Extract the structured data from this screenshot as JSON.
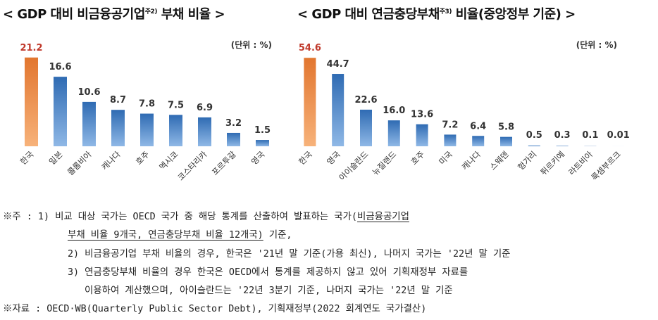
{
  "chart_data": [
    {
      "type": "bar",
      "title": "< GDP 대비 비금융공기업",
      "title_sup": "주2)",
      "title_end": " 부채 비율 >",
      "unit_label": "(단위 : %)",
      "categories": [
        "한국",
        "일본",
        "콜롬비아",
        "캐나다",
        "호주",
        "멕시코",
        "코스타리카",
        "포르투갈",
        "영국"
      ],
      "values": [
        21.2,
        16.6,
        10.6,
        8.7,
        7.8,
        7.5,
        6.9,
        3.2,
        1.5
      ],
      "value_labels": [
        "21.2",
        "16.6",
        "10.6",
        "8.7",
        "7.8",
        "7.5",
        "6.9",
        "3.2",
        "1.5"
      ],
      "ylim": [
        0,
        22
      ],
      "grid": false,
      "colors": {
        "highlight": "#e2762f",
        "highlight_light": "#f7b27a",
        "bar": "#2f6bb3",
        "bar_light": "#8fb8e6",
        "highlight_label": "#c0392b",
        "label": "#333333"
      }
    },
    {
      "type": "bar",
      "title": "< GDP 대비 연금충당부채",
      "title_sup": "주3)",
      "title_end": " 비율(중앙정부 기준) >",
      "unit_label": "(단위 : %)",
      "categories": [
        "한국",
        "영국",
        "아이슬란드",
        "뉴질랜드",
        "호주",
        "미국",
        "캐나다",
        "스웨덴",
        "헝가리",
        "튀르키예",
        "라트비아",
        "룩셈부르크"
      ],
      "values": [
        54.6,
        44.7,
        22.6,
        16.0,
        13.6,
        7.2,
        6.4,
        5.8,
        0.5,
        0.3,
        0.1,
        0.01
      ],
      "value_labels": [
        "54.6",
        "44.7",
        "22.6",
        "16.0",
        "13.6",
        "7.2",
        "6.4",
        "5.8",
        "0.5",
        "0.3",
        "0.1",
        "0.01"
      ],
      "ylim": [
        0,
        56
      ],
      "grid": false,
      "colors": {
        "highlight": "#e2762f",
        "highlight_light": "#f7b27a",
        "bar": "#2f6bb3",
        "bar_light": "#8fb8e6",
        "highlight_label": "#c0392b",
        "label": "#333333"
      }
    }
  ],
  "notes": {
    "line1_prefix": "※주 : 1) 비교 대상 국가는 OECD 국가 중 해당 통계를 산출하여 발표하는 국가(",
    "line1_underlined": "비금융공기업",
    "line2_underlined": "부채 비율 9개국, 연금충당부채 비율 12개국)",
    "line2_suffix": " 기준,",
    "line3": "2) 비금융공기업 부채 비율의 경우, 한국은 '21년 말 기준(가용 최신), 나머지 국가는 '22년 말 기준",
    "line4": "3) 연금충당부채 비율의 경우 한국은 OECD에서 통계를 제공하지 않고 있어 기획재정부 자료를",
    "line5": "이용하여 계산했으며, 아이슬란드는 '22년 3분기 기준, 나머지 국가는 '22년 말 기준",
    "source": "※자료 : OECD·WB(Quarterly Public Sector Debt), 기획재정부(2022 회계연도 국가결산)"
  }
}
